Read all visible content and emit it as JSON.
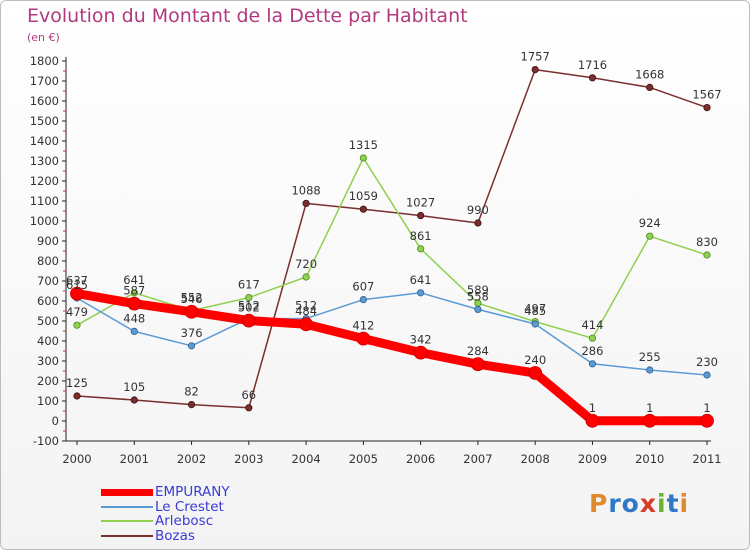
{
  "title": "Evolution du Montant de la Dette par Habitant",
  "unit": "(en €)",
  "logo": {
    "text": "Proxiti",
    "letter_colors": [
      "#e08a2b",
      "#2f78c7",
      "#2f78c7",
      "#d63b2a",
      "#6bb52e",
      "#2f78c7",
      "#e08a2b"
    ]
  },
  "chart_data": {
    "type": "line",
    "title": "Evolution du Montant de la Dette par Habitant",
    "ylabel": "(en €)",
    "xlabel": "",
    "x": [
      "2000",
      "2001",
      "2002",
      "2003",
      "2004",
      "2005",
      "2006",
      "2007",
      "2008",
      "2009",
      "2010",
      "2011"
    ],
    "ylim": [
      -100,
      1800
    ],
    "yticks": [
      "-100",
      "0",
      "100",
      "200",
      "300",
      "400",
      "500",
      "600",
      "700",
      "800",
      "900",
      "1000",
      "1100",
      "1200",
      "1300",
      "1400",
      "1500",
      "1600",
      "1700",
      "1800"
    ],
    "grid": false,
    "legend_position": "bottom-left",
    "series": [
      {
        "name": "EMPURANY",
        "color": "#ff0000",
        "values": [
          637,
          587,
          546,
          502,
          484,
          412,
          342,
          284,
          240,
          1,
          1,
          1
        ]
      },
      {
        "name": "Le Crestet",
        "color": "#5b9bd5",
        "values": [
          615,
          448,
          376,
          512,
          512,
          607,
          641,
          558,
          485,
          286,
          255,
          230
        ]
      },
      {
        "name": "Arlebosc",
        "color": "#8fd14f",
        "values": [
          479,
          641,
          552,
          617,
          720,
          1315,
          861,
          589,
          497,
          414,
          924,
          830
        ]
      },
      {
        "name": "Bozas",
        "color": "#7a2e2e",
        "values": [
          125,
          105,
          82,
          66,
          1088,
          1059,
          1027,
          990,
          1757,
          1716,
          1668,
          1567
        ]
      }
    ]
  }
}
